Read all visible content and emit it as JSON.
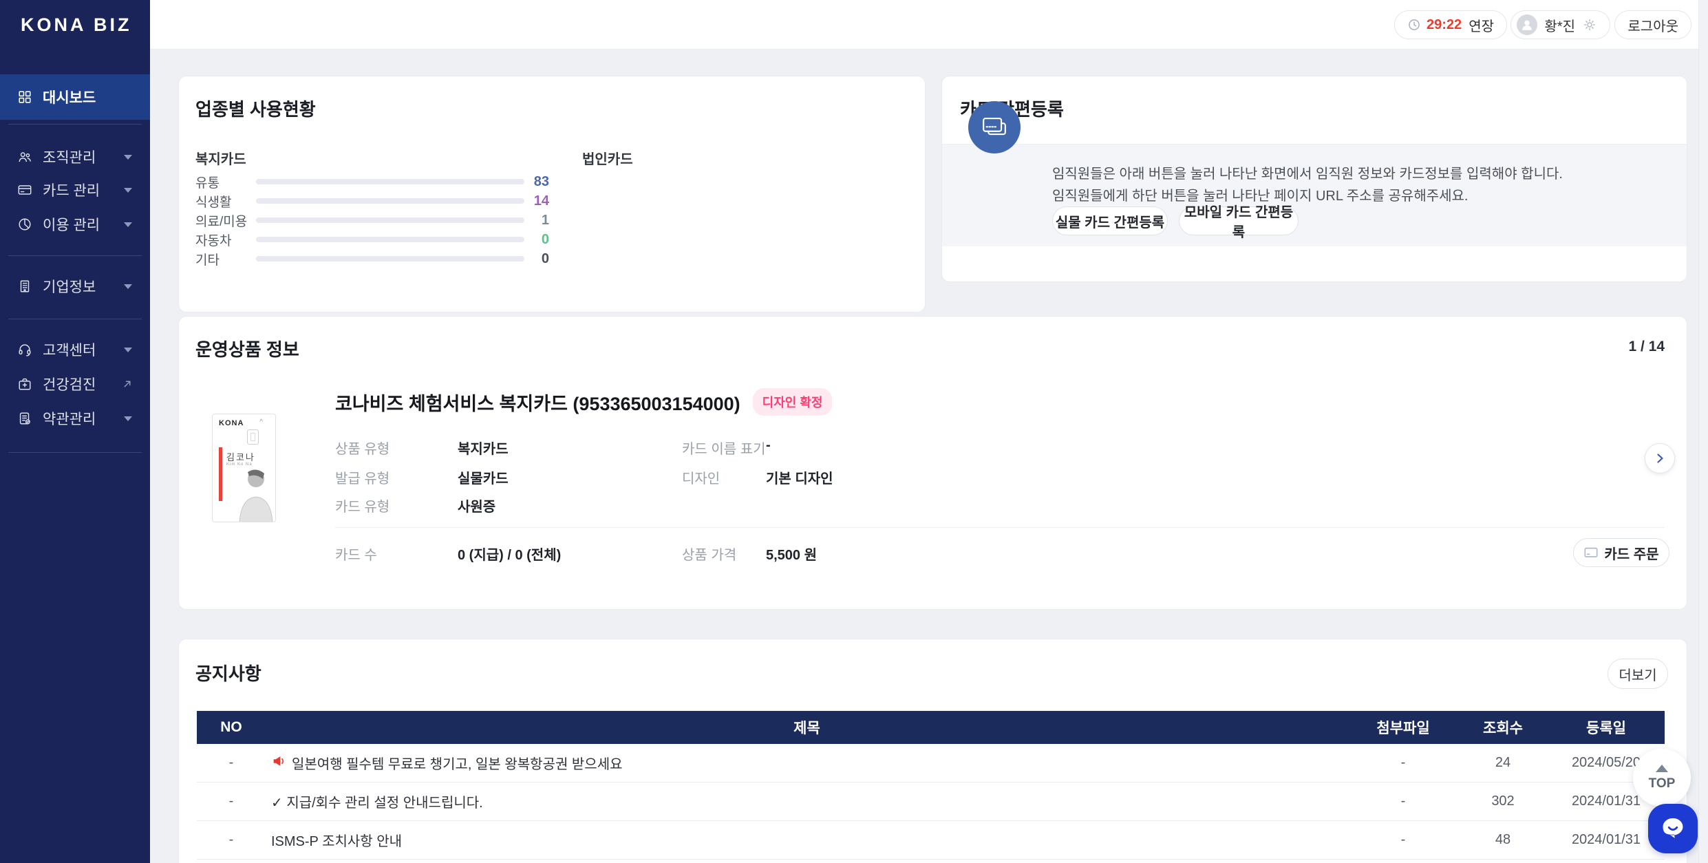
{
  "app": {
    "logo": "KONA BIZ"
  },
  "header": {
    "session_timer": "29:22",
    "extend_label": "연장",
    "username": "황*진",
    "logout_label": "로그아웃"
  },
  "sidebar": {
    "items": [
      {
        "label": "대시보드",
        "icon": "dashboard-grid-icon",
        "selected": true
      },
      {
        "label": "조직관리",
        "icon": "people-icon",
        "expand": "chevron"
      },
      {
        "label": "카드 관리",
        "icon": "card-icon",
        "expand": "chevron"
      },
      {
        "label": "이용 관리",
        "icon": "pie-chart-icon",
        "expand": "chevron"
      },
      {
        "label": "기업정보",
        "icon": "building-icon",
        "expand": "chevron"
      },
      {
        "label": "고객센터",
        "icon": "headset-icon",
        "expand": "chevron"
      },
      {
        "label": "건강검진",
        "icon": "health-bag-icon",
        "expand": "external"
      },
      {
        "label": "약관관리",
        "icon": "terms-doc-icon",
        "expand": "chevron"
      }
    ]
  },
  "usage_panel": {
    "title": "업종별 사용현황",
    "group_left": "복지카드",
    "group_right": "법인카드",
    "chart": {
      "type": "bar",
      "max": 100,
      "rows": [
        {
          "label": "유통",
          "value": 83,
          "bar_color": "#5571A8",
          "value_color": "#4A69A8"
        },
        {
          "label": "식생활",
          "value": 14,
          "bar_color": "#9D61B5",
          "value_color": "#9C62B8"
        },
        {
          "label": "의료/미용",
          "value": 1,
          "bar_color": "#7C8CA0",
          "value_color": "#7D8A99"
        },
        {
          "label": "자동차",
          "value": 0,
          "bar_color": "#64BE8C",
          "value_color": "#64BE8C"
        },
        {
          "label": "기타",
          "value": 0,
          "bar_color": "#4A4F58",
          "value_color": "#4A4F58"
        }
      ]
    }
  },
  "card_reg_panel": {
    "title": "카드 간편등록",
    "desc_line1": "임직원들은 아래 버튼을 눌러 나타난 화면에서 임직원 정보와 카드정보를 입력해야 합니다.",
    "desc_line2": "임직원들에게 하단 버튼을 눌러 나타난 페이지 URL 주소를 공유해주세요.",
    "physical_btn": "실물 카드 간편등록",
    "mobile_btn": "모바일 카드 간편등록"
  },
  "product_panel": {
    "title": "운영상품 정보",
    "pagination": "1 / 14",
    "name": "코나비즈 체험서비스 복지카드 (953365003154000)",
    "badge": "디자인 확정",
    "mini_card": {
      "brand": "KONA",
      "holder": "김코나",
      "holder_en": "Kim Ko Na"
    },
    "fields": [
      {
        "label": "상품 유형",
        "value": "복지카드"
      },
      {
        "label": "카드 이름 표기",
        "value": "-"
      },
      {
        "label": "발급 유형",
        "value": "실물카드"
      },
      {
        "label": "디자인",
        "value": "기본 디자인"
      },
      {
        "label": "카드 유형",
        "value": "사원증"
      }
    ],
    "summary": [
      {
        "label": "카드 수",
        "value": "0 (지급) / 0 (전체)"
      },
      {
        "label": "상품 가격",
        "value": "5,500 원"
      }
    ],
    "order_btn": "카드 주문"
  },
  "notice_panel": {
    "title": "공지사항",
    "more_btn": "더보기",
    "columns": [
      "NO",
      "제목",
      "첨부파일",
      "조회수",
      "등록일"
    ],
    "rows": [
      {
        "no": "-",
        "icon": "megaphone-icon",
        "title": "일본여행 필수템 무료로 챙기고, 일본 왕복항공권 받으세요",
        "attachment": "-",
        "views": "24",
        "date": "2024/05/20"
      },
      {
        "no": "-",
        "icon": null,
        "title": "✓ 지급/회수 관리 설정 안내드립니다.",
        "attachment": "-",
        "views": "302",
        "date": "2024/01/31"
      },
      {
        "no": "-",
        "icon": null,
        "title": "ISMS-P 조치사항 안내",
        "attachment": "-",
        "views": "48",
        "date": "2024/01/31"
      }
    ]
  },
  "floating": {
    "top_label": "TOP"
  },
  "colors": {
    "sidebar_bg": "#1B2458",
    "sidebar_selected_bg": "#1F3E88",
    "table_header_bg": "#1A2B5C",
    "timer_red": "#EE3B2E",
    "badge_pink_text": "#FF3D71",
    "reg_circle_blue": "#4066AD",
    "chat_blue": "#1D3AD2"
  }
}
